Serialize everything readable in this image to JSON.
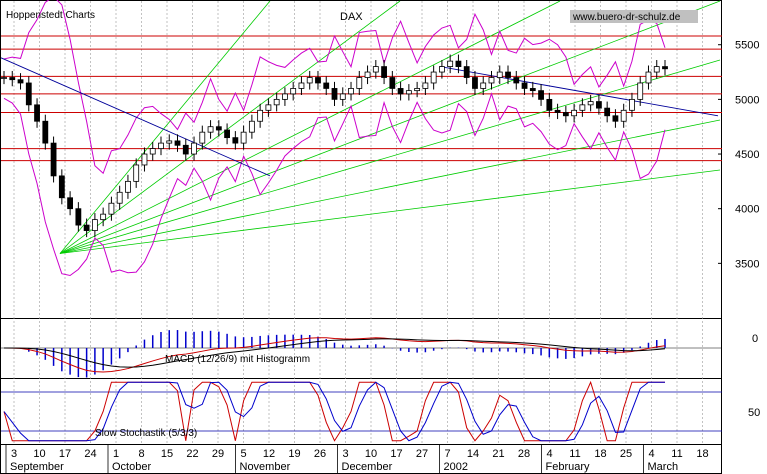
{
  "header": {
    "left_title": "Hoppenstedt Charts",
    "center_title": "DAX",
    "watermark": "www.buero-dr-schulz.de"
  },
  "colors": {
    "price": "#000000",
    "bollinger": "#cc00cc",
    "trend_down": "#000099",
    "fan": "#00cc00",
    "support": "#cc0000",
    "macd_line": "#cc0000",
    "signal_line": "#000000",
    "histogram": "#0000cc",
    "stoch_k": "#cc0000",
    "stoch_d": "#0000cc",
    "stoch_band": "#0000aa"
  },
  "chart_data": [
    {
      "type": "candlestick",
      "title": "DAX",
      "ylim": [
        3000,
        5900
      ],
      "y_ticks": [
        3500,
        4000,
        4500,
        5000,
        5500
      ],
      "x_day_ticks": [
        "3",
        "10",
        "17",
        "24",
        "1",
        "8",
        "15",
        "22",
        "29",
        "5",
        "12",
        "19",
        "26",
        "3",
        "10",
        "17",
        "27",
        "7",
        "14",
        "21",
        "28",
        "4",
        "11",
        "18",
        "25",
        "4",
        "11",
        "18"
      ],
      "x_month_labels": [
        "September",
        "October",
        "November",
        "December",
        "2002",
        "February",
        "March"
      ],
      "support_levels": [
        5580,
        5460,
        5210,
        5050,
        4880,
        4550,
        4440
      ],
      "close_series": [
        5200,
        5180,
        5150,
        4950,
        4800,
        4600,
        4300,
        4100,
        4000,
        3850,
        3800,
        3900,
        3950,
        4050,
        4150,
        4250,
        4400,
        4500,
        4550,
        4600,
        4620,
        4580,
        4500,
        4600,
        4700,
        4750,
        4720,
        4650,
        4600,
        4700,
        4800,
        4900,
        4950,
        5000,
        5050,
        5100,
        5150,
        5200,
        5150,
        5100,
        5000,
        5050,
        5100,
        5200,
        5250,
        5300,
        5200,
        5100,
        5050,
        5080,
        5100,
        5150,
        5250,
        5300,
        5350,
        5300,
        5200,
        5100,
        5150,
        5200,
        5250,
        5200,
        5150,
        5100,
        5080,
        5000,
        4900,
        4880,
        4850,
        4900,
        4950,
        4980,
        4920,
        4850,
        4800,
        4900,
        5000,
        5150,
        5250,
        5300,
        5280
      ]
    },
    {
      "type": "line",
      "title": "MACD (12/26/9) mit Histogramm",
      "y_ticks": [
        "0"
      ]
    },
    {
      "type": "line",
      "title": "Slow Stochastik (5/3/3)",
      "y_ticks": [
        "50"
      ],
      "bands": [
        20,
        80
      ]
    }
  ]
}
